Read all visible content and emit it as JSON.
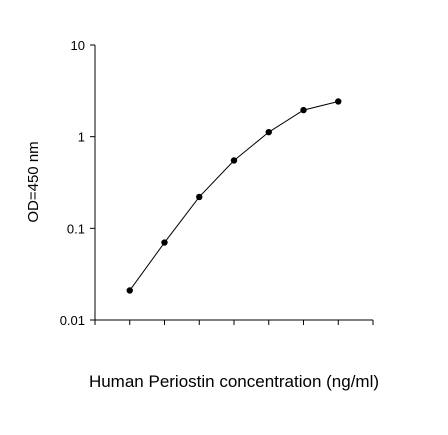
{
  "chart_data": {
    "type": "line",
    "title": "",
    "xlabel": "Human Periostin concentration (ng/ml)",
    "ylabel": "OD=450 nm",
    "yscale": "log",
    "ylim": [
      0.01,
      10
    ],
    "yticks": [
      {
        "value": 0.01,
        "label": "0.01"
      },
      {
        "value": 0.1,
        "label": "0.1"
      },
      {
        "value": 1,
        "label": "1"
      },
      {
        "value": 10,
        "label": "10"
      }
    ],
    "x_tick_labels_shown": false,
    "grid": false,
    "legend": "none",
    "line_color": "#000000",
    "marker_color": "#000000",
    "series": [
      {
        "values": [
          0.021,
          0.07,
          0.22,
          0.55,
          1.12,
          1.95,
          2.42
        ]
      }
    ]
  }
}
